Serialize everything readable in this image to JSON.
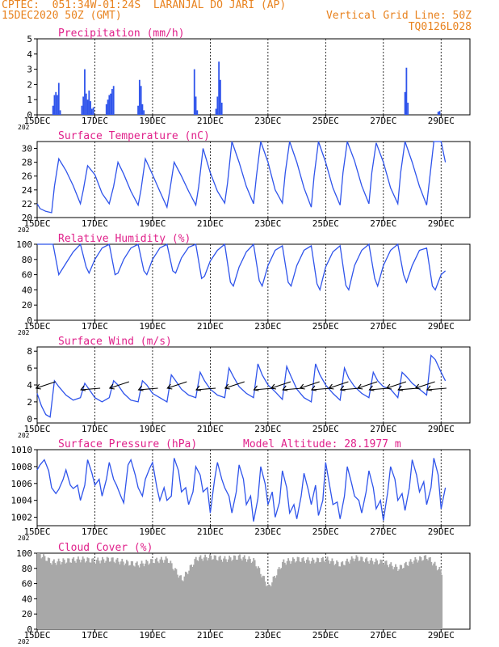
{
  "header": {
    "line1_left": "CPTEC:  051:34W-01:24S  LARANJAL DO JARI (AP)",
    "line2_left": "15DEC2020 50Z (GMT)",
    "line2_right": "Vertical Grid Line: 50Z",
    "line3_right": "TQ0126L028"
  },
  "colors": {
    "header": "#e8821e",
    "title": "#e0208a",
    "line": "#2f54eb",
    "cloud": "#a8a8a8",
    "text": "#000000"
  },
  "x_ticks": [
    "15DEC",
    "17DEC",
    "19DEC",
    "21DEC",
    "23DEC",
    "25DEC",
    "27DEC",
    "29DEC"
  ],
  "x_axis_year_fragment": "202",
  "panels": {
    "precipitation": {
      "title": "Precipitation (mm/h)",
      "y_ticks": [
        "0",
        "1",
        "2",
        "3",
        "4",
        "5"
      ],
      "ylim": [
        0,
        5
      ]
    },
    "temperature": {
      "title": "Surface Temperature (nC)",
      "y_ticks": [
        "20",
        "22",
        "24",
        "26",
        "28",
        "30"
      ],
      "ylim": [
        20,
        31
      ]
    },
    "humidity": {
      "title": "Relative Humidity (%)",
      "y_ticks": [
        "0",
        "20",
        "40",
        "60",
        "80",
        "100"
      ],
      "ylim": [
        0,
        100
      ]
    },
    "wind": {
      "title": "Surface Wind (m/s)",
      "y_ticks": [
        "0",
        "2",
        "4",
        "6",
        "8"
      ],
      "ylim": [
        -0.5,
        8.5
      ]
    },
    "pressure": {
      "title": "Surface Pressure (hPa)",
      "extra": "Model Altitude: 28.1977 m",
      "y_ticks": [
        "1002",
        "1004",
        "1006",
        "1008",
        "1010"
      ],
      "ylim": [
        1001,
        1010
      ]
    },
    "cloud": {
      "title": "Cloud Cover (%)",
      "y_ticks": [
        "0",
        "20",
        "40",
        "60",
        "80",
        "100"
      ],
      "ylim": [
        0,
        100
      ]
    }
  },
  "chart_data": [
    {
      "type": "bar",
      "title": "Precipitation (mm/h)",
      "x_unit": "days since 15DEC 00Z",
      "x": [
        0.55,
        0.6,
        0.65,
        0.7,
        0.75,
        0.8,
        1.55,
        1.6,
        1.65,
        1.7,
        1.75,
        1.8,
        1.85,
        1.9,
        1.95,
        2.4,
        2.45,
        2.5,
        2.55,
        2.6,
        2.65,
        3.5,
        3.55,
        3.6,
        3.65,
        3.7,
        5.45,
        5.5,
        5.55,
        6.2,
        6.25,
        6.3,
        6.35,
        6.4,
        12.75,
        12.8,
        12.85,
        13.9,
        13.95
      ],
      "values": [
        0.6,
        1.3,
        1.5,
        1.3,
        2.1,
        0.3,
        0.6,
        1.2,
        3.0,
        1.4,
        1.0,
        1.6,
        0.9,
        0.4,
        0.5,
        0.7,
        1.0,
        1.3,
        1.4,
        1.7,
        1.9,
        0.6,
        2.3,
        1.9,
        0.7,
        0.3,
        3.0,
        1.2,
        0.3,
        0.4,
        1.2,
        3.5,
        2.3,
        0.8,
        1.5,
        3.1,
        0.8,
        0.2,
        0.25
      ],
      "ylim": [
        0,
        5
      ]
    },
    {
      "type": "line",
      "title": "Surface Temperature (nC)",
      "x_unit": "days since 15DEC 00Z",
      "x": [
        0,
        0.1,
        0.3,
        0.5,
        0.6,
        0.75,
        1.0,
        1.25,
        1.5,
        1.6,
        1.75,
        2.0,
        2.25,
        2.5,
        2.65,
        2.8,
        3.0,
        3.25,
        3.5,
        3.6,
        3.75,
        4.0,
        4.25,
        4.5,
        4.6,
        4.75,
        5.0,
        5.25,
        5.5,
        5.6,
        5.75,
        6.0,
        6.25,
        6.5,
        6.6,
        6.75,
        7.0,
        7.25,
        7.5,
        7.6,
        7.75,
        8.0,
        8.25,
        8.5,
        8.6,
        8.75,
        9.0,
        9.25,
        9.5,
        9.6,
        9.75,
        10.0,
        10.25,
        10.5,
        10.6,
        10.75,
        11.0,
        11.25,
        11.5,
        11.6,
        11.75,
        12.0,
        12.25,
        12.5,
        12.6,
        12.75,
        13.0,
        13.25,
        13.5,
        13.6,
        13.75,
        14.0,
        14.15
      ],
      "values": [
        22.0,
        21.3,
        20.9,
        20.7,
        24.5,
        28.5,
        26.8,
        24.6,
        22.0,
        24.0,
        27.5,
        26.2,
        23.5,
        22.0,
        24.5,
        28.0,
        26.3,
        23.8,
        21.8,
        24.0,
        28.5,
        26.2,
        23.8,
        21.5,
        24.0,
        28.0,
        26.0,
        23.8,
        21.8,
        24.5,
        30.0,
        26.5,
        23.8,
        22.1,
        25.0,
        31.0,
        28.0,
        24.5,
        22.0,
        26.0,
        31.0,
        28.0,
        24.0,
        22.1,
        26.5,
        31.0,
        28.0,
        24.3,
        21.5,
        26.0,
        31.0,
        28.0,
        24.3,
        21.8,
        26.5,
        31.0,
        28.2,
        24.6,
        22.0,
        26.5,
        30.8,
        28.0,
        24.3,
        22.0,
        26.5,
        31.0,
        28.0,
        24.5,
        21.8,
        25.5,
        31.0,
        31.0,
        28.0
      ],
      "ylim": [
        20,
        31
      ]
    },
    {
      "type": "line",
      "title": "Relative Humidity (%)",
      "x_unit": "days since 15DEC 00Z",
      "x": [
        0,
        0.3,
        0.55,
        0.75,
        1.0,
        1.25,
        1.5,
        1.7,
        1.8,
        2.0,
        2.25,
        2.5,
        2.7,
        2.8,
        3.0,
        3.25,
        3.5,
        3.7,
        3.8,
        4.0,
        4.25,
        4.5,
        4.7,
        4.8,
        5.0,
        5.25,
        5.5,
        5.7,
        5.8,
        6.0,
        6.25,
        6.5,
        6.7,
        6.8,
        7.0,
        7.25,
        7.5,
        7.7,
        7.8,
        8.0,
        8.25,
        8.5,
        8.7,
        8.8,
        9.0,
        9.25,
        9.5,
        9.7,
        9.8,
        10.0,
        10.25,
        10.5,
        10.7,
        10.8,
        11.0,
        11.25,
        11.5,
        11.7,
        11.8,
        12.0,
        12.25,
        12.5,
        12.7,
        12.8,
        13.0,
        13.25,
        13.5,
        13.7,
        13.8,
        14.0,
        14.15
      ],
      "values": [
        100,
        100,
        100,
        60,
        75,
        90,
        100,
        70,
        62,
        80,
        95,
        100,
        60,
        62,
        80,
        95,
        100,
        65,
        60,
        80,
        95,
        100,
        65,
        62,
        82,
        96,
        100,
        55,
        58,
        78,
        92,
        100,
        50,
        45,
        70,
        90,
        100,
        52,
        45,
        72,
        92,
        98,
        50,
        45,
        72,
        92,
        98,
        48,
        40,
        70,
        90,
        98,
        46,
        40,
        72,
        92,
        100,
        55,
        45,
        72,
        92,
        100,
        60,
        50,
        72,
        92,
        95,
        45,
        40,
        60,
        65
      ],
      "ylim": [
        0,
        100
      ]
    },
    {
      "type": "line",
      "title": "Surface Wind (m/s)",
      "x_unit": "days since 15DEC 00Z",
      "x": [
        0,
        0.15,
        0.3,
        0.45,
        0.6,
        0.75,
        1.0,
        1.25,
        1.5,
        1.65,
        1.8,
        2.0,
        2.25,
        2.5,
        2.65,
        2.8,
        3.0,
        3.25,
        3.5,
        3.65,
        3.8,
        4.0,
        4.25,
        4.5,
        4.65,
        4.8,
        5.0,
        5.25,
        5.5,
        5.65,
        5.8,
        6.0,
        6.25,
        6.5,
        6.65,
        6.8,
        7.0,
        7.25,
        7.5,
        7.65,
        7.8,
        8.0,
        8.25,
        8.5,
        8.65,
        8.8,
        9.0,
        9.25,
        9.5,
        9.65,
        9.8,
        10.0,
        10.25,
        10.5,
        10.65,
        10.8,
        11.0,
        11.25,
        11.5,
        11.65,
        11.8,
        12.0,
        12.25,
        12.5,
        12.65,
        12.8,
        13.0,
        13.25,
        13.5,
        13.65,
        13.8,
        14.0,
        14.15
      ],
      "values": [
        3.0,
        1.5,
        0.5,
        0.2,
        4.5,
        3.8,
        2.8,
        2.2,
        2.5,
        4.2,
        3.5,
        2.5,
        2.0,
        2.5,
        4.5,
        4.0,
        3.0,
        2.2,
        2.0,
        4.5,
        4.0,
        3.0,
        2.5,
        2.0,
        5.2,
        4.5,
        3.5,
        2.8,
        2.5,
        5.5,
        4.5,
        3.5,
        2.8,
        2.5,
        6.0,
        5.0,
        3.8,
        3.0,
        2.5,
        6.5,
        5.2,
        4.0,
        3.2,
        2.3,
        6.2,
        5.0,
        3.5,
        2.5,
        2.0,
        6.5,
        5.2,
        4.0,
        3.0,
        2.2,
        6.0,
        4.8,
        3.8,
        3.0,
        2.5,
        5.5,
        4.5,
        3.8,
        3.5,
        2.5,
        5.5,
        5.0,
        4.2,
        3.5,
        2.8,
        7.5,
        7.0,
        5.5,
        4.5
      ],
      "arrow_x": [
        0.3,
        1.85,
        2.85,
        3.85,
        4.85,
        5.85,
        6.85,
        7.85,
        8.45,
        8.85,
        9.45,
        9.85,
        10.45,
        10.85,
        11.45,
        11.85,
        12.45,
        12.85,
        13.45,
        13.85
      ],
      "arrow_y": [
        4,
        4,
        4,
        4,
        4,
        4,
        4,
        4,
        4,
        4,
        4,
        4,
        4,
        4,
        4,
        4,
        4,
        4,
        4,
        4
      ],
      "ylim": [
        -0.5,
        8.5
      ]
    },
    {
      "type": "line",
      "title": "Surface Pressure (hPa)",
      "x_unit": "days since 15DEC 00Z",
      "x": [
        0,
        0.1,
        0.25,
        0.4,
        0.5,
        0.65,
        0.75,
        0.9,
        1.0,
        1.15,
        1.25,
        1.4,
        1.5,
        1.65,
        1.75,
        1.9,
        2.0,
        2.15,
        2.25,
        2.4,
        2.5,
        2.65,
        2.75,
        2.9,
        3.0,
        3.15,
        3.25,
        3.4,
        3.5,
        3.65,
        3.75,
        3.9,
        4.0,
        4.15,
        4.25,
        4.4,
        4.5,
        4.65,
        4.75,
        4.9,
        5.0,
        5.15,
        5.25,
        5.4,
        5.5,
        5.65,
        5.75,
        5.9,
        6.0,
        6.15,
        6.25,
        6.4,
        6.5,
        6.65,
        6.75,
        6.9,
        7.0,
        7.15,
        7.25,
        7.4,
        7.5,
        7.65,
        7.75,
        7.9,
        8.0,
        8.15,
        8.25,
        8.4,
        8.5,
        8.65,
        8.75,
        8.9,
        9.0,
        9.15,
        9.25,
        9.4,
        9.5,
        9.65,
        9.75,
        9.9,
        10.0,
        10.15,
        10.25,
        10.4,
        10.5,
        10.65,
        10.75,
        10.9,
        11.0,
        11.15,
        11.25,
        11.4,
        11.5,
        11.65,
        11.75,
        11.9,
        12.0,
        12.15,
        12.25,
        12.4,
        12.5,
        12.65,
        12.75,
        12.9,
        13.0,
        13.15,
        13.25,
        13.4,
        13.5,
        13.65,
        13.75,
        13.9,
        14.0,
        14.15
      ],
      "values": [
        1007.6,
        1008.2,
        1008.8,
        1007.5,
        1005.5,
        1004.8,
        1005.3,
        1006.5,
        1007.6,
        1005.8,
        1005.4,
        1005.8,
        1004.0,
        1005.8,
        1008.8,
        1007.2,
        1005.8,
        1006.5,
        1004.5,
        1006.5,
        1008.5,
        1006.5,
        1005.8,
        1004.5,
        1003.7,
        1008.2,
        1008.8,
        1007.0,
        1005.5,
        1004.5,
        1006.5,
        1007.8,
        1008.5,
        1005.5,
        1004.0,
        1005.5,
        1004.0,
        1004.5,
        1009.0,
        1007.5,
        1005.0,
        1005.5,
        1003.5,
        1005.0,
        1008.0,
        1007.0,
        1005.0,
        1005.5,
        1002.5,
        1006.5,
        1008.5,
        1006.5,
        1005.5,
        1004.5,
        1002.5,
        1005.0,
        1008.2,
        1006.5,
        1003.5,
        1004.5,
        1001.5,
        1004.2,
        1008.0,
        1006.0,
        1003.5,
        1005.0,
        1002.0,
        1003.8,
        1007.5,
        1005.5,
        1002.5,
        1003.5,
        1001.8,
        1004.5,
        1007.2,
        1005.2,
        1003.5,
        1005.8,
        1002.2,
        1004.0,
        1008.5,
        1005.5,
        1003.5,
        1003.8,
        1001.8,
        1004.5,
        1008.0,
        1006.0,
        1004.5,
        1004.0,
        1002.5,
        1005.0,
        1007.5,
        1005.5,
        1003.0,
        1004.0,
        1001.6,
        1005.0,
        1008.0,
        1006.5,
        1004.0,
        1004.8,
        1002.8,
        1005.5,
        1008.8,
        1007.0,
        1005.0,
        1006.2,
        1003.5,
        1005.5,
        1009.0,
        1007.0,
        1003.0,
        1005.5
      ],
      "ylim": [
        1001,
        1010
      ]
    },
    {
      "type": "bar",
      "title": "Cloud Cover (%)",
      "x_unit": "days since 15DEC 00Z",
      "x": [
        0,
        0.5,
        1.0,
        1.5,
        2.0,
        2.5,
        3.0,
        3.5,
        4.0,
        4.5,
        5.0,
        5.5,
        6.0,
        6.5,
        7.0,
        7.5,
        8.0,
        8.5,
        9.0,
        9.5,
        10.0,
        10.5,
        11.0,
        11.5,
        12.0,
        12.5,
        13.0,
        13.5,
        14.0
      ],
      "values": [
        100,
        88,
        90,
        92,
        90,
        92,
        88,
        85,
        90,
        92,
        65,
        93,
        95,
        92,
        95,
        90,
        55,
        88,
        92,
        90,
        92,
        85,
        94,
        90,
        88,
        80,
        90,
        95,
        75
      ],
      "ylim": [
        0,
        100
      ]
    }
  ]
}
